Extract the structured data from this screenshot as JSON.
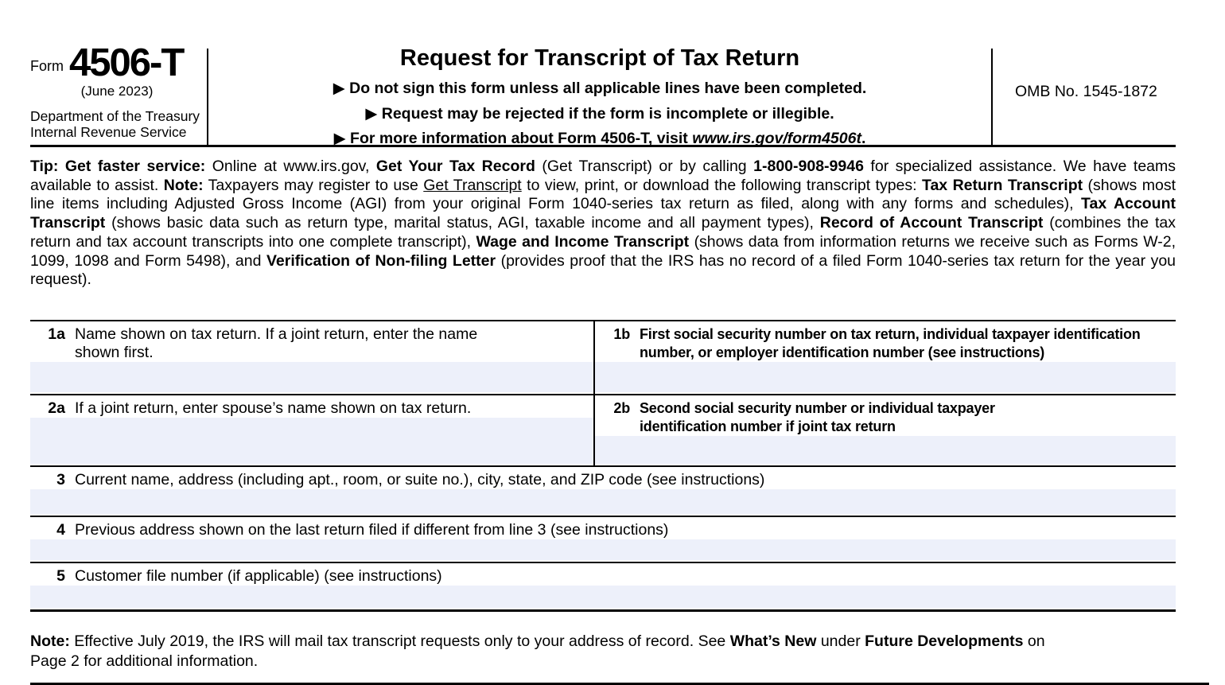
{
  "header": {
    "form_label": "Form",
    "form_number": "4506-T",
    "revision": "(June 2023)",
    "agency_line1": "Department of the Treasury",
    "agency_line2": "Internal Revenue Service",
    "title": "Request for Transcript of Tax Return",
    "bullets": [
      [
        {
          "t": "▶ Do not sign this form unless all applicable lines have been completed.",
          "b": 1
        }
      ],
      [
        {
          "t": "▶ Request may be rejected if the form is incomplete or illegible.",
          "b": 1
        }
      ],
      [
        {
          "t": "▶ For more information about Form 4506-T, visit ",
          "b": 1
        },
        {
          "t": "www.irs.gov/form4506t",
          "b": 1,
          "i": 1
        },
        {
          "t": ".",
          "b": 1
        }
      ]
    ],
    "omb": "OMB No. 1545-1872"
  },
  "tip": {
    "runs": [
      {
        "t": "Tip: Get faster service: ",
        "b": 1
      },
      {
        "t": "Online at www.irs.gov, "
      },
      {
        "t": "Get Your Tax Record",
        "b": 1
      },
      {
        "t": " (Get Transcript) or by calling "
      },
      {
        "t": "1-800-908-9946",
        "b": 1
      },
      {
        "t": " for specialized assistance. We have teams available to assist. "
      },
      {
        "t": "Note:",
        "b": 1
      },
      {
        "t": " Taxpayers may register to use "
      },
      {
        "t": "Get Transcript",
        "u": 1
      },
      {
        "t": " to view, print, or download the following transcript types: "
      },
      {
        "t": "Tax Return Transcript",
        "b": 1
      },
      {
        "t": " (shows most line items including Adjusted Gross Income (AGI) from your original Form 1040-series tax return as filed, along with any forms and schedules), "
      },
      {
        "t": "Tax Account Transcript",
        "b": 1
      },
      {
        "t": " (shows basic data such as return type, marital status, AGI, taxable income and all payment types), "
      },
      {
        "t": "Record of Account Transcript",
        "b": 1
      },
      {
        "t": " (combines the tax return and tax account transcripts into one complete transcript), "
      },
      {
        "t": "Wage and Income Transcript",
        "b": 1
      },
      {
        "t": " (shows data from information returns we receive such as Forms W-2, 1099, 1098 and Form 5498), and "
      },
      {
        "t": "Verification of Non-filing Letter",
        "b": 1
      },
      {
        "t": " (provides proof that the IRS has no record of a filed Form 1040-series tax return for the year you request)."
      }
    ]
  },
  "fields": [
    {
      "id": "1a",
      "label": "Name shown on tax return. If a joint return, enter the name\nshown first."
    },
    {
      "id": "1b",
      "label": "First social security number on tax return, individual taxpayer identification\nnumber, or employer identification number (see instructions)"
    },
    {
      "id": "2a",
      "label": "If a joint return, enter spouse’s name shown on tax return."
    },
    {
      "id": "2b",
      "label": "Second social security number or individual taxpayer\nidentification number if joint tax return"
    },
    {
      "id": "3",
      "label": "Current name, address (including apt., room, or suite no.), city, state, and ZIP code (see instructions)"
    },
    {
      "id": "4",
      "label": "Previous address shown on the last return filed if different from line 3 (see instructions)"
    },
    {
      "id": "5",
      "label": "Customer file number (if applicable) (see instructions)"
    }
  ],
  "note": {
    "runs": [
      {
        "t": "Note:",
        "b": 1
      },
      {
        "t": " Effective July 2019, the IRS will mail tax transcript requests only to your address of record. See "
      },
      {
        "t": "What’s New",
        "b": 1
      },
      {
        "t": " under "
      },
      {
        "t": "Future Developments",
        "b": 1
      },
      {
        "t": " on\nPage 2 for additional information."
      }
    ]
  },
  "colors": {
    "input_background": "#edf0fa",
    "line": "#000000"
  }
}
